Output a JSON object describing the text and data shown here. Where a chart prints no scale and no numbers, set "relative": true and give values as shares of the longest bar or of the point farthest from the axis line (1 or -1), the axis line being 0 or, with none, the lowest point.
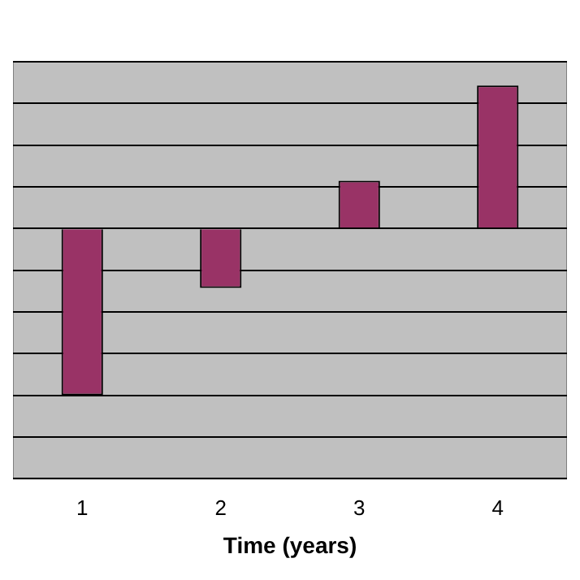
{
  "chart_data": {
    "type": "bar",
    "xlabel": "Time (years)",
    "categories": [
      "1",
      "2",
      "3",
      "4"
    ],
    "values": [
      -1,
      -0.357,
      0.286,
      0.857
    ],
    "relative": true,
    "color": "#993366",
    "grid": "y"
  }
}
